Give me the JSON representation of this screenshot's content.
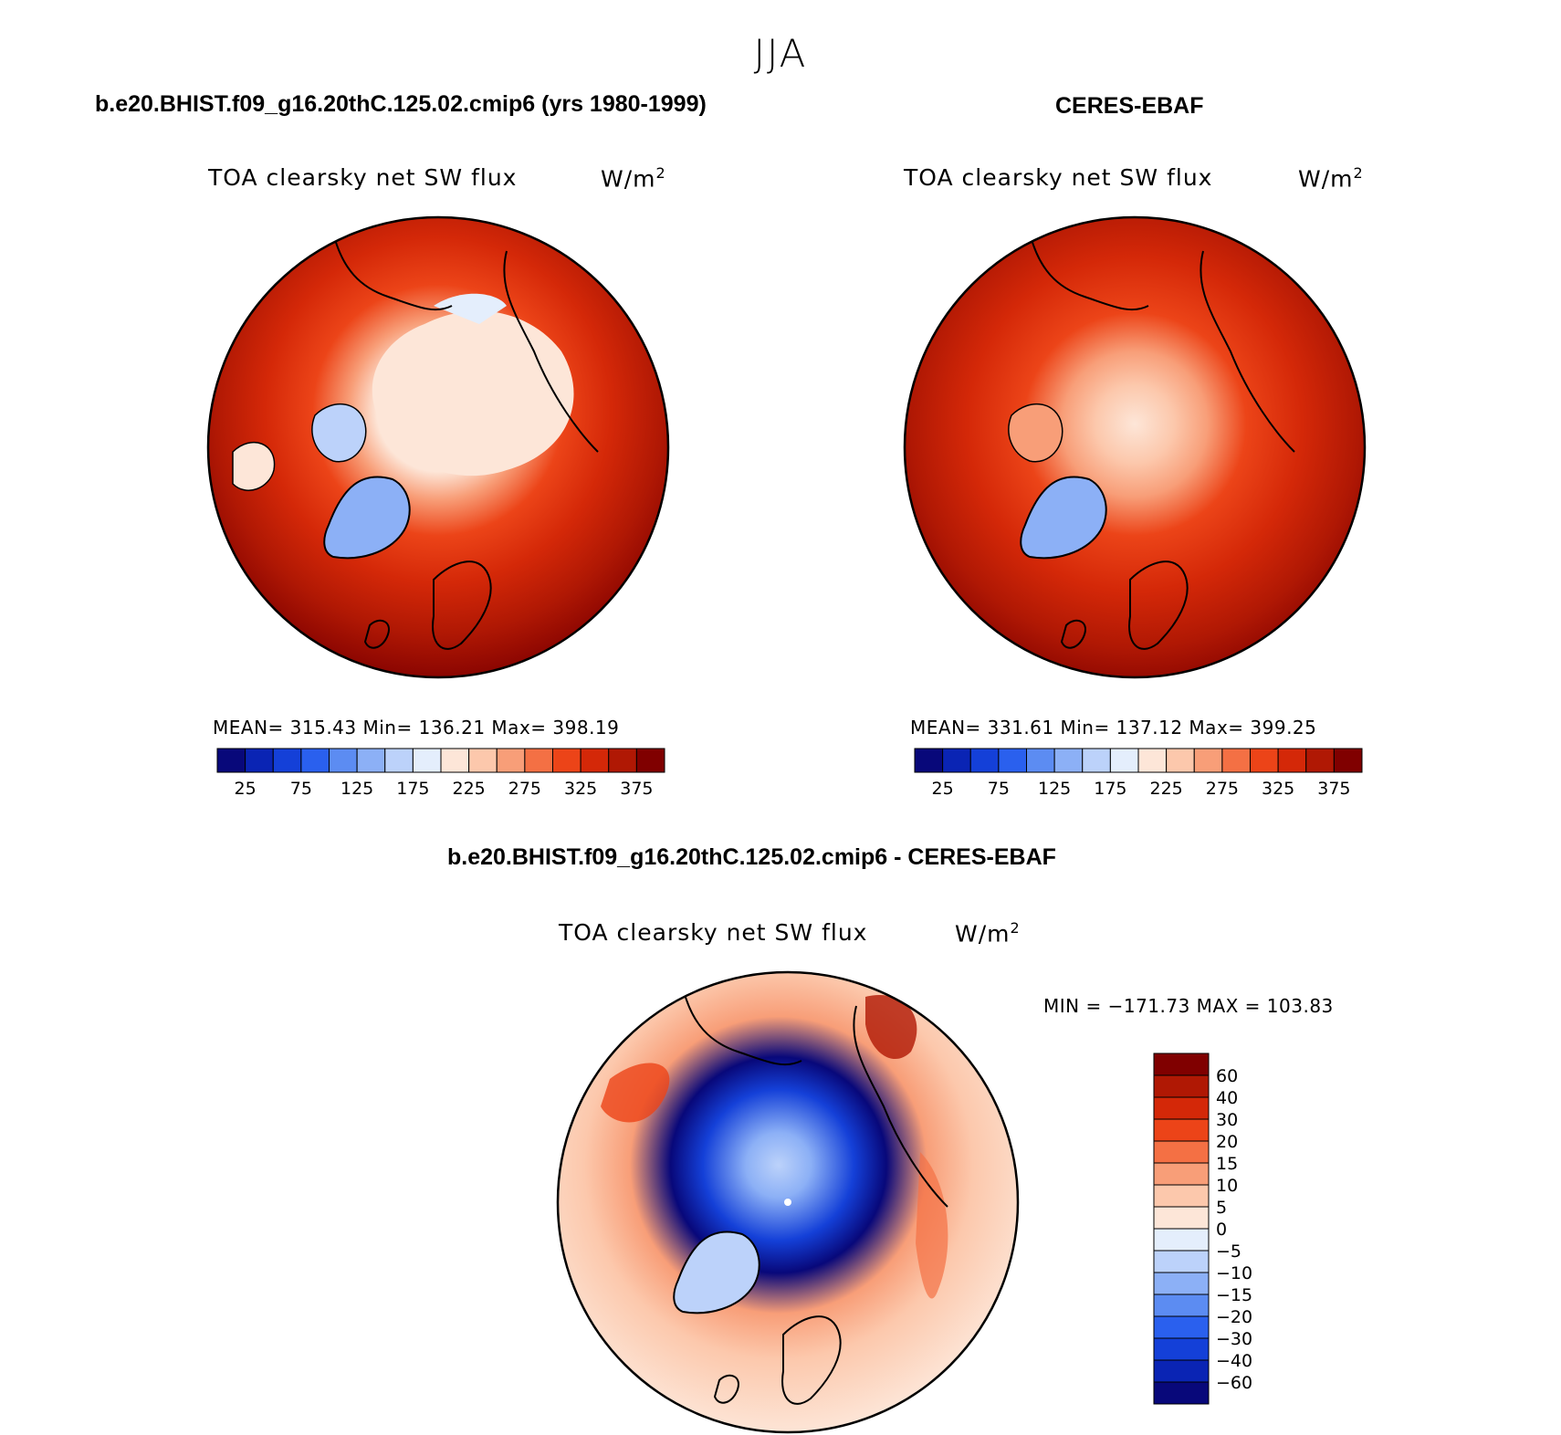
{
  "season": "JJA",
  "panels": [
    {
      "case_title": "b.e20.BHIST.f09_g16.20thC.125.02.cmip6 (yrs 1980-1999)",
      "variable": "TOA clearsky net SW flux",
      "units": "W/m",
      "units_sup": "2",
      "stats": "MEAN= 315.43   Min= 136.21   Max= 398.19",
      "colorbar_labels": [
        "25",
        "75",
        "125",
        "175",
        "225",
        "275",
        "325",
        "375"
      ]
    },
    {
      "case_title": "CERES-EBAF",
      "variable": "TOA clearsky net SW flux",
      "units": "W/m",
      "units_sup": "2",
      "stats": "MEAN= 331.61   Min= 137.12   Max= 399.25",
      "colorbar_labels": [
        "25",
        "75",
        "125",
        "175",
        "225",
        "275",
        "325",
        "375"
      ]
    }
  ],
  "diff_panel": {
    "case_title": "b.e20.BHIST.f09_g16.20thC.125.02.cmip6 - CERES-EBAF",
    "variable": "TOA clearsky net SW flux",
    "units": "W/m",
    "units_sup": "2",
    "minmax": "MIN = −171.73 MAX = 103.83",
    "colorbar_labels": [
      "60",
      "40",
      "30",
      "20",
      "15",
      "10",
      "5",
      "0",
      "−5",
      "−10",
      "−15",
      "−20",
      "−30",
      "−40",
      "−60"
    ]
  },
  "colors": {
    "abs_palette": [
      "#08087a",
      "#0a24b4",
      "#1440d8",
      "#2a60ee",
      "#5c8cf2",
      "#8cb0f6",
      "#bcd2fa",
      "#e4eefc",
      "#fde6d8",
      "#fcc8ac",
      "#f89e78",
      "#f47044",
      "#ec4418",
      "#d42808",
      "#b01804",
      "#800000"
    ],
    "diff_palette": [
      "#800000",
      "#b01804",
      "#d42808",
      "#ec4418",
      "#f47044",
      "#f89e78",
      "#fcc8ac",
      "#fde6d8",
      "#e4eefc",
      "#bcd2fa",
      "#8cb0f6",
      "#5c8cf2",
      "#2a60ee",
      "#1440d8",
      "#0a24b4",
      "#08087a"
    ]
  }
}
